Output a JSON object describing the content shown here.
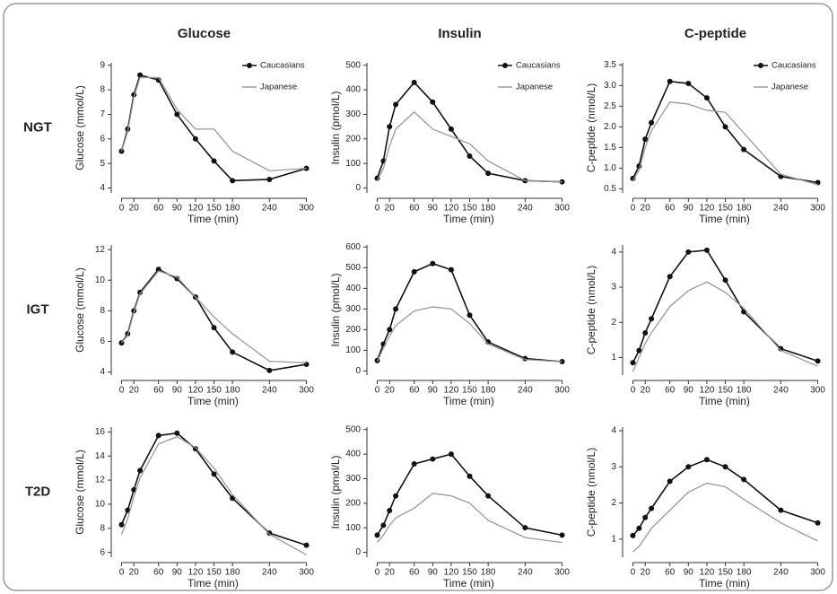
{
  "chart_data": [
    {
      "type": "line",
      "title": "Glucose",
      "row_label": "NGT",
      "xlabel": "Time (min)",
      "ylabel": "Glucose (mmol/L)",
      "x": [
        0,
        10,
        20,
        30,
        60,
        90,
        120,
        150,
        180,
        240,
        300
      ],
      "xlim": [
        -8,
        305
      ],
      "xticks": [
        0,
        20,
        60,
        90,
        120,
        150,
        180,
        240,
        300
      ],
      "ylim": [
        3.8,
        9.1
      ],
      "yticks": [
        4,
        5,
        6,
        7,
        8,
        9
      ],
      "legend": "upper right",
      "series": [
        {
          "name": "Caucasians",
          "color": "#111111",
          "marker": "circle",
          "values": [
            5.5,
            6.4,
            7.8,
            8.6,
            8.4,
            7.0,
            6.0,
            5.1,
            4.3,
            4.35,
            4.8
          ]
        },
        {
          "name": "Japanese",
          "color": "#999999",
          "marker": "none",
          "values": [
            5.5,
            6.3,
            7.7,
            8.5,
            8.5,
            7.2,
            6.4,
            6.4,
            5.5,
            4.7,
            4.8
          ]
        }
      ]
    },
    {
      "type": "line",
      "title": "Insulin",
      "xlabel": "Time (min)",
      "ylabel": "Insulin (pmol/L)",
      "x": [
        0,
        10,
        20,
        30,
        60,
        90,
        120,
        150,
        180,
        240,
        300
      ],
      "xlim": [
        -8,
        305
      ],
      "xticks": [
        0,
        20,
        60,
        90,
        120,
        150,
        180,
        240,
        300
      ],
      "ylim": [
        -20,
        510
      ],
      "yticks": [
        0,
        100,
        200,
        300,
        400,
        500
      ],
      "legend": "upper right",
      "series": [
        {
          "name": "Caucasians",
          "color": "#111111",
          "marker": "circle",
          "values": [
            40,
            110,
            250,
            340,
            430,
            350,
            240,
            130,
            60,
            30,
            25
          ]
        },
        {
          "name": "Japanese",
          "color": "#999999",
          "marker": "none",
          "values": [
            30,
            80,
            170,
            240,
            310,
            240,
            210,
            180,
            110,
            30,
            25
          ]
        }
      ]
    },
    {
      "type": "line",
      "title": "C-peptide",
      "xlabel": "Time (min)",
      "ylabel": "C-peptide (nmol/L)",
      "x": [
        0,
        10,
        20,
        30,
        60,
        90,
        120,
        150,
        180,
        240,
        300
      ],
      "xlim": [
        -8,
        305
      ],
      "xticks": [
        0,
        20,
        60,
        90,
        120,
        150,
        180,
        240,
        300
      ],
      "ylim": [
        0.4,
        3.55
      ],
      "yticks": [
        0.5,
        {
          "value": 1,
          "label": "1.0"
        },
        1.5,
        {
          "value": 2,
          "label": "2.0"
        },
        2.5,
        {
          "value": 3,
          "label": "3.0"
        },
        3.5
      ],
      "legend": "upper right",
      "series": [
        {
          "name": "Caucasians",
          "color": "#111111",
          "marker": "circle",
          "values": [
            0.75,
            1.05,
            1.7,
            2.1,
            3.1,
            3.05,
            2.7,
            2.0,
            1.45,
            0.8,
            0.65
          ]
        },
        {
          "name": "Japanese",
          "color": "#999999",
          "marker": "none",
          "values": [
            0.7,
            0.95,
            1.5,
            1.9,
            2.6,
            2.55,
            2.4,
            2.35,
            1.85,
            0.85,
            0.6
          ]
        }
      ]
    },
    {
      "type": "line",
      "row_label": "IGT",
      "xlabel": "Time (min)",
      "ylabel": "Glucose (mmol/L)",
      "x": [
        0,
        10,
        20,
        30,
        60,
        90,
        120,
        150,
        180,
        240,
        300
      ],
      "xlim": [
        -8,
        305
      ],
      "xticks": [
        0,
        20,
        60,
        90,
        120,
        150,
        180,
        240,
        300
      ],
      "ylim": [
        3.8,
        12.3
      ],
      "yticks": [
        4,
        6,
        8,
        10,
        12
      ],
      "series": [
        {
          "color": "#111111",
          "marker": "circle",
          "values": [
            5.9,
            6.5,
            8.0,
            9.2,
            10.7,
            10.1,
            8.9,
            6.9,
            5.3,
            4.1,
            4.5
          ]
        },
        {
          "color": "#999999",
          "marker": "none",
          "values": [
            5.9,
            6.4,
            7.9,
            9.1,
            10.6,
            10.2,
            8.9,
            7.6,
            6.5,
            4.7,
            4.6
          ]
        }
      ]
    },
    {
      "type": "line",
      "xlabel": "Time (min)",
      "ylabel": "Insulin (pmol/L)",
      "x": [
        0,
        10,
        20,
        30,
        60,
        90,
        120,
        150,
        180,
        240,
        300
      ],
      "xlim": [
        -8,
        305
      ],
      "xticks": [
        0,
        20,
        60,
        90,
        120,
        150,
        180,
        240,
        300
      ],
      "ylim": [
        -20,
        610
      ],
      "yticks": [
        0,
        100,
        200,
        300,
        400,
        500,
        600
      ],
      "series": [
        {
          "color": "#111111",
          "marker": "circle",
          "values": [
            50,
            130,
            200,
            300,
            480,
            520,
            490,
            270,
            140,
            60,
            45
          ]
        },
        {
          "color": "#999999",
          "marker": "none",
          "values": [
            45,
            110,
            170,
            220,
            290,
            310,
            300,
            230,
            130,
            55,
            45
          ]
        }
      ]
    },
    {
      "type": "line",
      "xlabel": "Time (min)",
      "ylabel": "C-peptide (nmol/L)",
      "x": [
        0,
        10,
        20,
        30,
        60,
        90,
        120,
        150,
        180,
        240,
        300
      ],
      "xlim": [
        -8,
        305
      ],
      "xticks": [
        0,
        20,
        60,
        90,
        120,
        150,
        180,
        240,
        300
      ],
      "ylim": [
        0.5,
        4.2
      ],
      "yticks": [
        1,
        2,
        3,
        4
      ],
      "series": [
        {
          "color": "#111111",
          "marker": "circle",
          "values": [
            0.85,
            1.2,
            1.7,
            2.1,
            3.3,
            4.0,
            4.05,
            3.2,
            2.3,
            1.25,
            0.9
          ]
        },
        {
          "color": "#999999",
          "marker": "none",
          "values": [
            0.6,
            1.0,
            1.4,
            1.7,
            2.45,
            2.9,
            3.15,
            2.85,
            2.4,
            1.2,
            0.75
          ]
        }
      ]
    },
    {
      "type": "line",
      "row_label": "T2D",
      "xlabel": "Time (min)",
      "ylabel": "Glucose (mmol/L)",
      "x": [
        0,
        10,
        20,
        30,
        60,
        90,
        120,
        150,
        180,
        240,
        300
      ],
      "xlim": [
        -8,
        305
      ],
      "xticks": [
        0,
        20,
        60,
        90,
        120,
        150,
        180,
        240,
        300
      ],
      "ylim": [
        5.6,
        16.4
      ],
      "yticks": [
        6,
        8,
        10,
        12,
        14,
        16
      ],
      "series": [
        {
          "color": "#111111",
          "marker": "circle",
          "values": [
            8.3,
            9.5,
            11.2,
            12.8,
            15.7,
            15.9,
            14.6,
            12.5,
            10.5,
            7.6,
            6.6
          ]
        },
        {
          "color": "#999999",
          "marker": "none",
          "values": [
            7.5,
            8.8,
            10.6,
            12.2,
            15.0,
            15.6,
            14.7,
            13.0,
            10.8,
            7.5,
            5.8
          ]
        }
      ]
    },
    {
      "type": "line",
      "xlabel": "Time (min)",
      "ylabel": "Insulin (pmol/L)",
      "x": [
        0,
        10,
        20,
        30,
        60,
        90,
        120,
        150,
        180,
        240,
        300
      ],
      "xlim": [
        -8,
        305
      ],
      "xticks": [
        0,
        20,
        60,
        90,
        120,
        150,
        180,
        240,
        300
      ],
      "ylim": [
        -20,
        510
      ],
      "yticks": [
        0,
        100,
        200,
        300,
        400,
        500
      ],
      "series": [
        {
          "color": "#111111",
          "marker": "circle",
          "values": [
            70,
            110,
            170,
            230,
            360,
            380,
            400,
            310,
            230,
            100,
            70
          ]
        },
        {
          "color": "#999999",
          "marker": "none",
          "values": [
            40,
            70,
            110,
            140,
            180,
            240,
            230,
            200,
            130,
            60,
            40
          ]
        }
      ]
    },
    {
      "type": "line",
      "xlabel": "Time (min)",
      "ylabel": "C-peptide (nmol/L)",
      "x": [
        0,
        10,
        20,
        30,
        60,
        90,
        120,
        150,
        180,
        240,
        300
      ],
      "xlim": [
        -8,
        305
      ],
      "xticks": [
        0,
        20,
        60,
        90,
        120,
        150,
        180,
        240,
        300
      ],
      "ylim": [
        0.5,
        4.1
      ],
      "yticks": [
        1,
        2,
        3,
        4
      ],
      "series": [
        {
          "color": "#111111",
          "marker": "circle",
          "values": [
            1.1,
            1.3,
            1.6,
            1.85,
            2.6,
            3.0,
            3.2,
            3.0,
            2.65,
            1.8,
            1.45
          ]
        },
        {
          "color": "#999999",
          "marker": "none",
          "values": [
            0.65,
            0.8,
            1.05,
            1.3,
            1.8,
            2.3,
            2.55,
            2.45,
            2.1,
            1.45,
            0.95
          ]
        }
      ]
    }
  ]
}
